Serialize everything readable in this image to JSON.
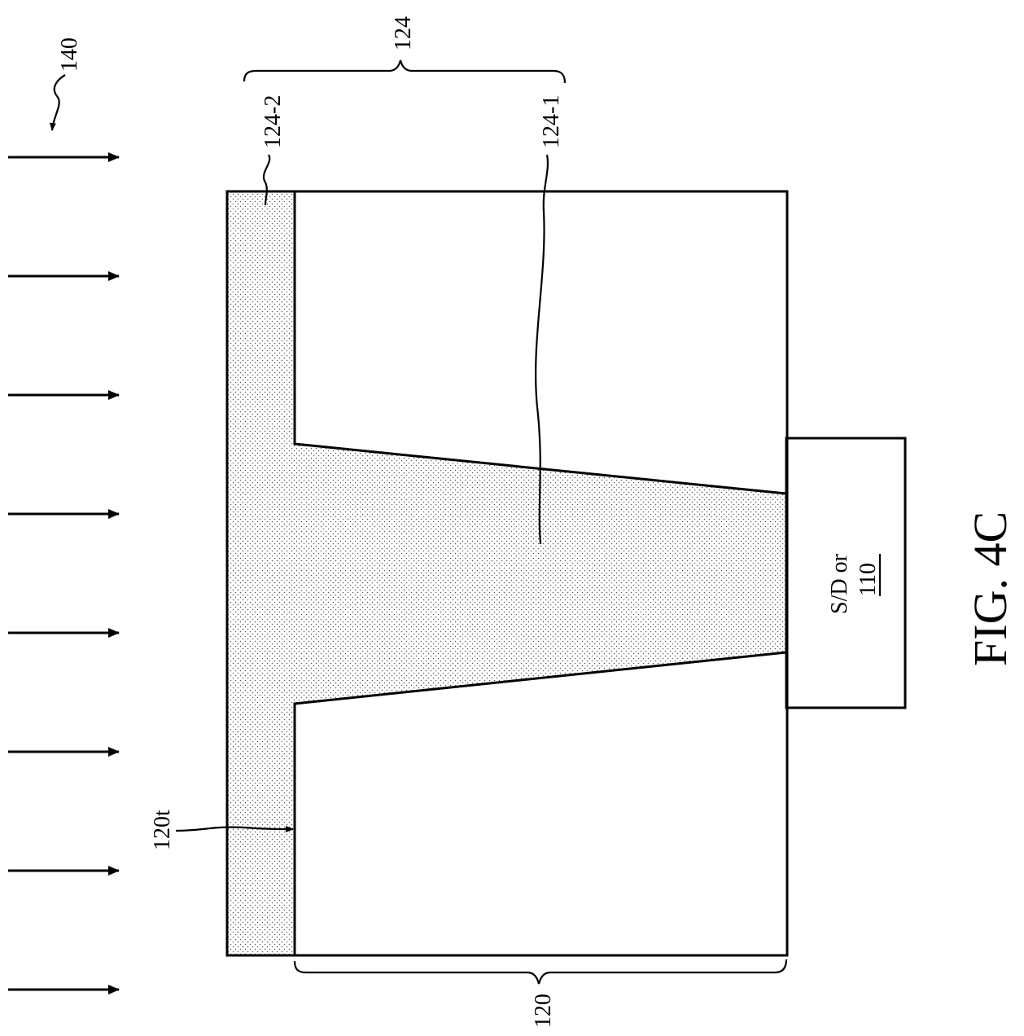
{
  "figure": {
    "caption": "FIG. 4C",
    "labels": {
      "arrows_ref": "140",
      "layer_top": "124",
      "layer_top_part2": "124-2",
      "layer_top_part1": "124-1",
      "substrate": "120",
      "substrate_top": "120t",
      "sd_text": "S/D or",
      "sd_ref": "110"
    },
    "arrow_count": 8,
    "colors": {
      "line": "#000000",
      "background": "#ffffff",
      "stipple": "#000000"
    }
  }
}
